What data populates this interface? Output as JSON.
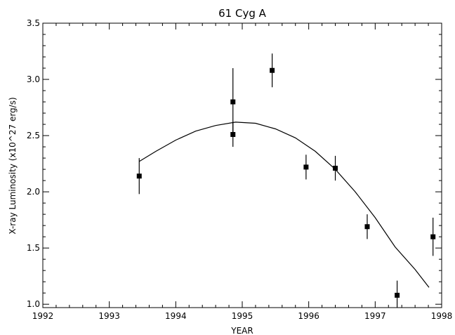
{
  "chart_data": {
    "type": "scatter",
    "title": "61 Cyg A",
    "xlabel": "YEAR",
    "ylabel": "X-ray Luminosity (x10^27 erg/s)",
    "xlim": [
      1992,
      1998
    ],
    "ylim": [
      0.97,
      3.5
    ],
    "xticks": [
      1992,
      1993,
      1994,
      1995,
      1996,
      1997,
      1998
    ],
    "xtick_labels": [
      "1992",
      "1993",
      "1994",
      "1995",
      "1996",
      "1997",
      "1998"
    ],
    "xminor_step": 0.2,
    "yticks": [
      1.0,
      1.5,
      2.0,
      2.5,
      3.0,
      3.5
    ],
    "ytick_labels": [
      "1.0",
      "1.5",
      "2.0",
      "2.5",
      "3.0",
      "3.5"
    ],
    "yminor_step": 0.1,
    "grid": false,
    "points": [
      {
        "x": 1993.45,
        "y": 2.14,
        "err_low": 1.98,
        "err_high": 2.3
      },
      {
        "x": 1994.86,
        "y": 2.8,
        "err_low": 2.5,
        "err_high": 3.1
      },
      {
        "x": 1994.86,
        "y": 2.51,
        "err_low": 2.4,
        "err_high": 2.62
      },
      {
        "x": 1995.45,
        "y": 3.08,
        "err_low": 2.93,
        "err_high": 3.23
      },
      {
        "x": 1995.96,
        "y": 2.22,
        "err_low": 2.11,
        "err_high": 2.33
      },
      {
        "x": 1996.4,
        "y": 2.21,
        "err_low": 2.1,
        "err_high": 2.32
      },
      {
        "x": 1996.88,
        "y": 1.69,
        "err_low": 1.58,
        "err_high": 1.8
      },
      {
        "x": 1997.33,
        "y": 1.08,
        "err_low": 0.97,
        "err_high": 1.21
      },
      {
        "x": 1997.87,
        "y": 1.6,
        "err_low": 1.43,
        "err_high": 1.77
      }
    ],
    "fit_curve": {
      "x": [
        1993.45,
        1993.7,
        1994.0,
        1994.3,
        1994.6,
        1994.9,
        1995.2,
        1995.5,
        1995.8,
        1996.1,
        1996.4,
        1996.7,
        1997.0,
        1997.3,
        1997.6,
        1997.81
      ],
      "y": [
        2.27,
        2.36,
        2.46,
        2.54,
        2.59,
        2.62,
        2.61,
        2.56,
        2.48,
        2.36,
        2.2,
        2.0,
        1.77,
        1.51,
        1.31,
        1.15
      ]
    }
  }
}
